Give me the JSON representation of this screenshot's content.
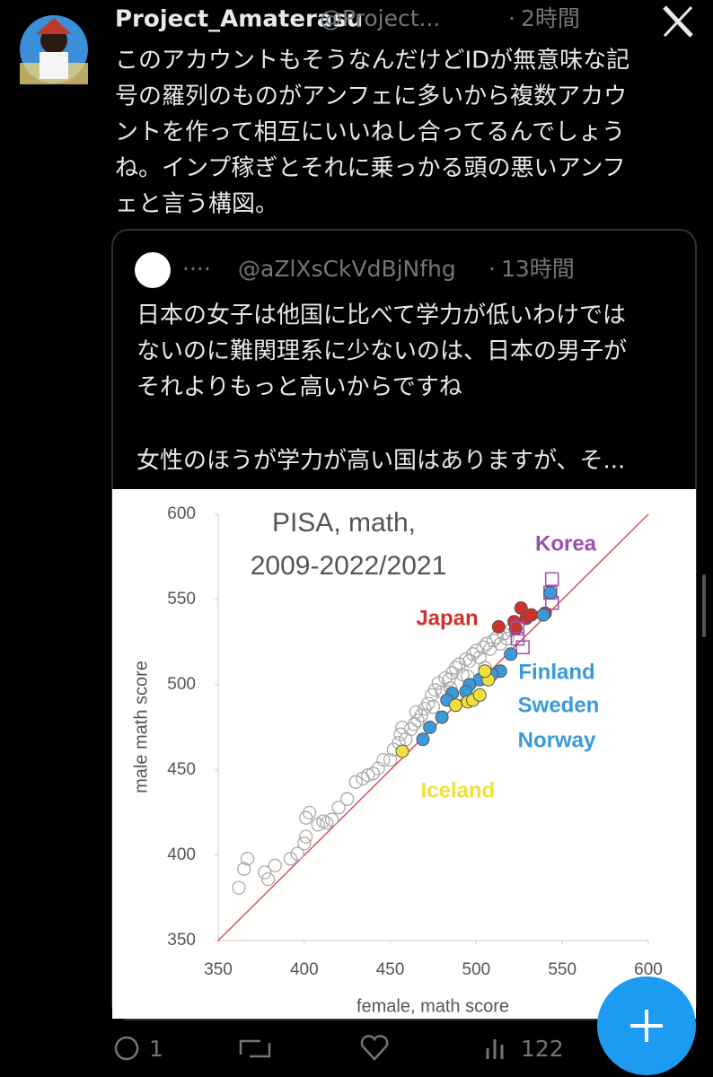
{
  "tweet": {
    "author": "Project_Amaterasu",
    "handle": "@Project...",
    "separator": "·",
    "time": "2時間",
    "text": [
      "このアカウントもそうなんだけどIDが無意味な記",
      "号の羅列のものがアンフェに多いから複数アカウ",
      "ントを作って相互にいいねし合ってるんでしょう",
      "ね。インプ稼ぎとそれに乗っかる頭の悪いアンフ",
      "ェと言う構図。"
    ],
    "replies": "1",
    "views": "122"
  },
  "quote": {
    "dots": "····",
    "handle": "@aZlXsCkVdBjNfhg",
    "separator": "·",
    "time": "13時間",
    "text": [
      "日本の女子は他国に比べて学力が低いわけでは",
      "ないのに難関理系に少ないのは、日本の男子が",
      "それよりもっと高いからですね",
      "女性のほうが学力が高い国はありますが、そ..."
    ]
  },
  "chart_data": {
    "type": "scatter",
    "title": [
      "PISA, math,",
      "2009-2022/2021"
    ],
    "x_label": "female, math score",
    "y_label": "male math score",
    "xlim": [
      350,
      600
    ],
    "ylim": [
      350,
      600
    ],
    "xticks": [
      350,
      400,
      450,
      500,
      550,
      600
    ],
    "yticks": [
      350,
      400,
      450,
      500,
      550,
      600
    ],
    "series": [
      {
        "color": "#aaaaaa",
        "marker": "hollow-circle",
        "x": [
          362,
          365,
          367,
          377,
          379,
          383,
          392,
          396,
          400,
          401,
          401,
          403,
          408,
          411,
          413,
          416,
          420,
          425,
          430,
          434,
          437,
          440,
          443,
          446,
          450,
          452,
          455,
          456,
          459,
          462,
          464,
          466,
          468,
          470,
          472,
          474,
          476,
          478,
          480,
          482,
          484,
          486,
          488,
          490,
          492,
          494,
          496,
          498,
          500,
          502,
          504,
          506,
          508,
          510,
          512,
          514,
          516,
          518,
          520,
          505,
          495,
          485,
          475,
          465,
          457
        ],
        "values": [
          381,
          392,
          398,
          390,
          386,
          394,
          398,
          401,
          407,
          411,
          422,
          425,
          418,
          420,
          419,
          421,
          428,
          433,
          443,
          445,
          447,
          448,
          451,
          456,
          456,
          462,
          466,
          471,
          468,
          474,
          477,
          479,
          482,
          486,
          489,
          494,
          497,
          501,
          496,
          504,
          503,
          507,
          510,
          512,
          506,
          515,
          514,
          518,
          520,
          516,
          522,
          524,
          521,
          526,
          528,
          524,
          530,
          527,
          532,
          510,
          505,
          498,
          487,
          484,
          475
        ]
      },
      {
        "name": "Japan",
        "color": "#d0312d",
        "marker": "filled-circle",
        "x": [
          513,
          522,
          526,
          529,
          532,
          540,
          523
        ],
        "values": [
          534,
          537,
          545,
          539,
          541,
          542,
          533
        ]
      },
      {
        "name": "Korea",
        "color": "#9b4fb0",
        "marker": "hollow-square",
        "x": [
          544,
          544,
          543,
          524,
          527,
          524
        ],
        "values": [
          562,
          548,
          554,
          533,
          522,
          527
        ]
      },
      {
        "labels": [
          "Finland",
          "Sweden",
          "Norway"
        ],
        "color": "#3a9ad9",
        "marker": "filled-circle",
        "x": [
          543,
          539,
          520,
          514,
          509,
          502,
          496,
          494,
          486,
          483,
          480,
          473,
          469
        ],
        "values": [
          554,
          541,
          518,
          508,
          506,
          503,
          500,
          496,
          495,
          491,
          481,
          475,
          468
        ]
      },
      {
        "name": "Iceland",
        "color": "#f2e03a",
        "marker": "filled-circle",
        "x": [
          457,
          488,
          495,
          498,
          502,
          507,
          505
        ],
        "values": [
          461,
          488,
          490,
          491,
          494,
          503,
          508
        ]
      }
    ]
  }
}
